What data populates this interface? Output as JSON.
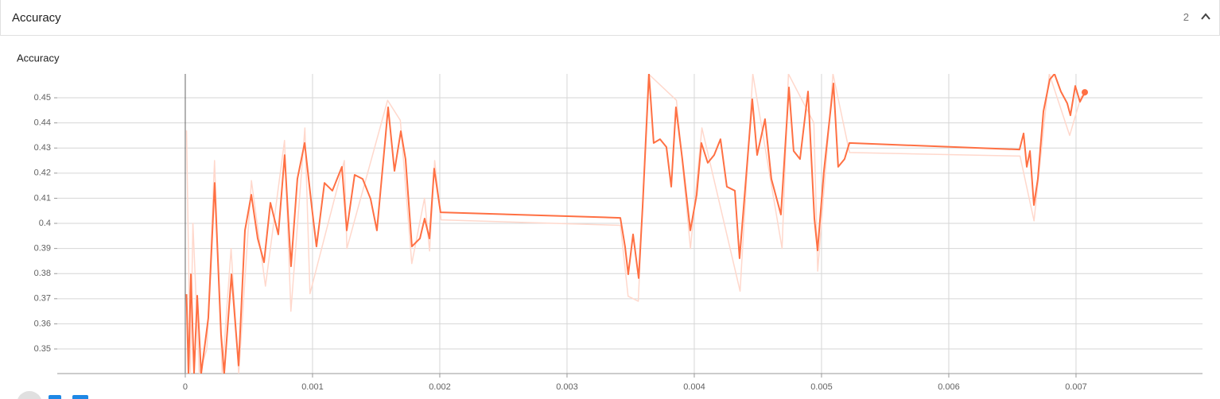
{
  "header": {
    "title": "Accuracy",
    "count": 2
  },
  "chart_data": {
    "type": "line",
    "title": "Accuracy",
    "xlim": [
      -0.001006,
      0.007994
    ],
    "ylim": [
      0.3402,
      0.4595
    ],
    "xticks": [
      0,
      0.001,
      0.002,
      0.003,
      0.004,
      0.005,
      0.006,
      0.007
    ],
    "yticks": [
      0.35,
      0.36,
      0.37,
      0.38,
      0.39,
      0.4,
      0.41,
      0.42,
      0.43,
      0.44,
      0.45
    ],
    "grid": true,
    "series": [
      {
        "color": "#ffd8cc",
        "x": [
          1e-05,
          4e-05,
          6e-05,
          0.00011,
          0.00017,
          0.00023,
          0.00029,
          0.00036,
          0.00042,
          0.00052,
          0.00063,
          0.00078,
          0.00083,
          0.00094,
          0.00098,
          0.00125,
          0.00127,
          0.00159,
          0.00169,
          0.00178,
          0.00188,
          0.00192,
          0.00196,
          0.00201,
          0.00342,
          0.00348,
          0.00356,
          0.00364,
          0.00386,
          0.00397,
          0.00406,
          0.00436,
          0.00446,
          0.00469,
          0.00474,
          0.00494,
          0.00497,
          0.00509,
          0.00522,
          0.00656,
          0.00667,
          0.00679,
          0.00695,
          0.00704,
          0.00707
        ],
        "values": [
          0.437,
          0.3402,
          0.4,
          0.3402,
          0.35,
          0.425,
          0.3402,
          0.39,
          0.3402,
          0.417,
          0.375,
          0.433,
          0.365,
          0.438,
          0.372,
          0.425,
          0.39,
          0.449,
          0.441,
          0.384,
          0.41,
          0.389,
          0.425,
          0.4014,
          0.3992,
          0.371,
          0.369,
          0.4595,
          0.449,
          0.39,
          0.438,
          0.373,
          0.4595,
          0.39,
          0.4595,
          0.44,
          0.381,
          0.4595,
          0.4282,
          0.4268,
          0.401,
          0.4595,
          0.435,
          0.4505,
          0.4509
        ]
      },
      {
        "color": "#ff7043",
        "x": [
          1e-05,
          2.5e-05,
          4.4e-05,
          6.9e-05,
          9.4e-05,
          0.000125,
          0.000181,
          0.000231,
          0.000281,
          0.000306,
          0.000363,
          0.000419,
          0.000469,
          0.000519,
          0.000569,
          0.000619,
          0.000669,
          0.000731,
          0.000781,
          0.000831,
          0.000881,
          0.000938,
          0.000994,
          0.001031,
          0.001094,
          0.001156,
          0.001231,
          0.001269,
          0.001331,
          0.001394,
          0.001456,
          0.001506,
          0.001569,
          0.001594,
          0.001644,
          0.001694,
          0.001731,
          0.001781,
          0.001844,
          0.001881,
          0.001919,
          0.001956,
          0.002006,
          0.003419,
          0.003456,
          0.003481,
          0.003519,
          0.003563,
          0.003594,
          0.003644,
          0.003681,
          0.003731,
          0.003781,
          0.003819,
          0.003856,
          0.003906,
          0.003969,
          0.004019,
          0.004056,
          0.004106,
          0.004156,
          0.004206,
          0.004256,
          0.004319,
          0.004356,
          0.004406,
          0.004456,
          0.004494,
          0.004556,
          0.004606,
          0.004681,
          0.004744,
          0.004781,
          0.004831,
          0.004894,
          0.004944,
          0.004969,
          0.005019,
          0.005094,
          0.005131,
          0.005181,
          0.005219,
          0.006556,
          0.006588,
          0.006613,
          0.006638,
          0.006669,
          0.0067,
          0.006744,
          0.006794,
          0.006831,
          0.006881,
          0.006931,
          0.006956,
          0.006994,
          0.007031,
          0.007069
        ],
        "values": [
          0.3718,
          0.3402,
          0.3797,
          0.3402,
          0.3712,
          0.3402,
          0.3623,
          0.4161,
          0.356,
          0.3402,
          0.3797,
          0.3434,
          0.3972,
          0.4114,
          0.394,
          0.3845,
          0.4082,
          0.3956,
          0.4272,
          0.3829,
          0.4177,
          0.432,
          0.4066,
          0.3908,
          0.4161,
          0.413,
          0.4225,
          0.3972,
          0.4193,
          0.4177,
          0.4098,
          0.3972,
          0.432,
          0.4462,
          0.4209,
          0.4367,
          0.4256,
          0.3908,
          0.394,
          0.4019,
          0.394,
          0.4218,
          0.4044,
          0.4022,
          0.3908,
          0.3797,
          0.3956,
          0.3782,
          0.4066,
          0.4595,
          0.432,
          0.4335,
          0.4304,
          0.4146,
          0.4462,
          0.4256,
          0.3972,
          0.4114,
          0.432,
          0.4241,
          0.4272,
          0.4335,
          0.4146,
          0.413,
          0.3861,
          0.4177,
          0.4494,
          0.4272,
          0.4415,
          0.4177,
          0.4035,
          0.4541,
          0.4288,
          0.4256,
          0.4525,
          0.4019,
          0.3892,
          0.4209,
          0.4557,
          0.4225,
          0.4256,
          0.432,
          0.4294,
          0.4358,
          0.4225,
          0.4288,
          0.4073,
          0.4177,
          0.4446,
          0.4573,
          0.4595,
          0.4525,
          0.4478,
          0.443,
          0.4547,
          0.4484,
          0.4522
        ]
      }
    ]
  }
}
